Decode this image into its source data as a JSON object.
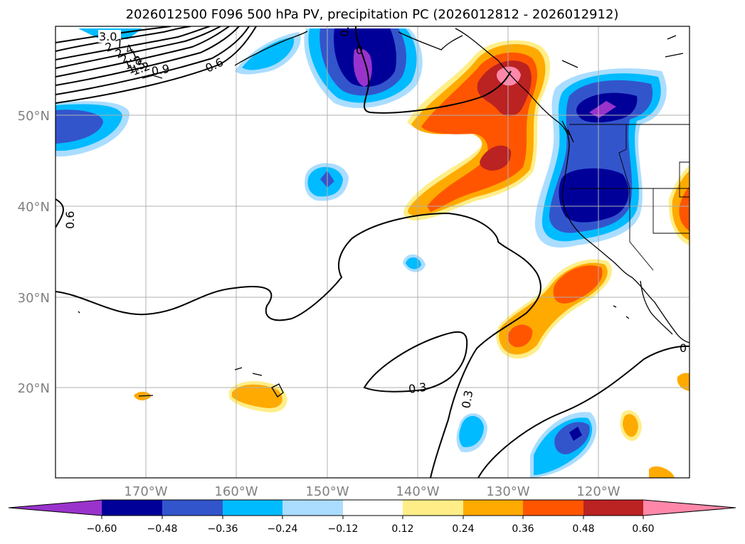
{
  "title": "2026012500 F096 500 hPa PV, precipitation PC (2026012812 - 2026012912)",
  "map": {
    "lat_labels": [
      "50°N",
      "40°N",
      "30°N",
      "20°N"
    ],
    "lon_labels": [
      "170°W",
      "160°W",
      "150°W",
      "140°W",
      "130°W",
      "120°W"
    ],
    "grid": true,
    "pv_contour_labels": [
      "3.0",
      "2.7",
      "2.4",
      "2.1",
      "1.8",
      "1.5",
      "1.2",
      "0.9",
      "0.6",
      "0.6",
      "0.3",
      "0.3",
      "0.6",
      "0",
      "0"
    ]
  },
  "colorbar": {
    "ticks": [
      "−0.60",
      "−0.48",
      "−0.36",
      "−0.24",
      "−0.12",
      "0.12",
      "0.24",
      "0.36",
      "0.48",
      "0.60"
    ],
    "colors": {
      "neg_extreme": "#9933cc",
      "neg_060": "#000099",
      "neg_048": "#3355cc",
      "neg_036": "#00bbff",
      "neg_024": "#aaddff",
      "neutral": "#ffffff",
      "pos_012": "#ffee88",
      "pos_024": "#ffaa00",
      "pos_036": "#ff5500",
      "pos_048": "#bb2222",
      "pos_extreme": "#ff88aa"
    }
  }
}
